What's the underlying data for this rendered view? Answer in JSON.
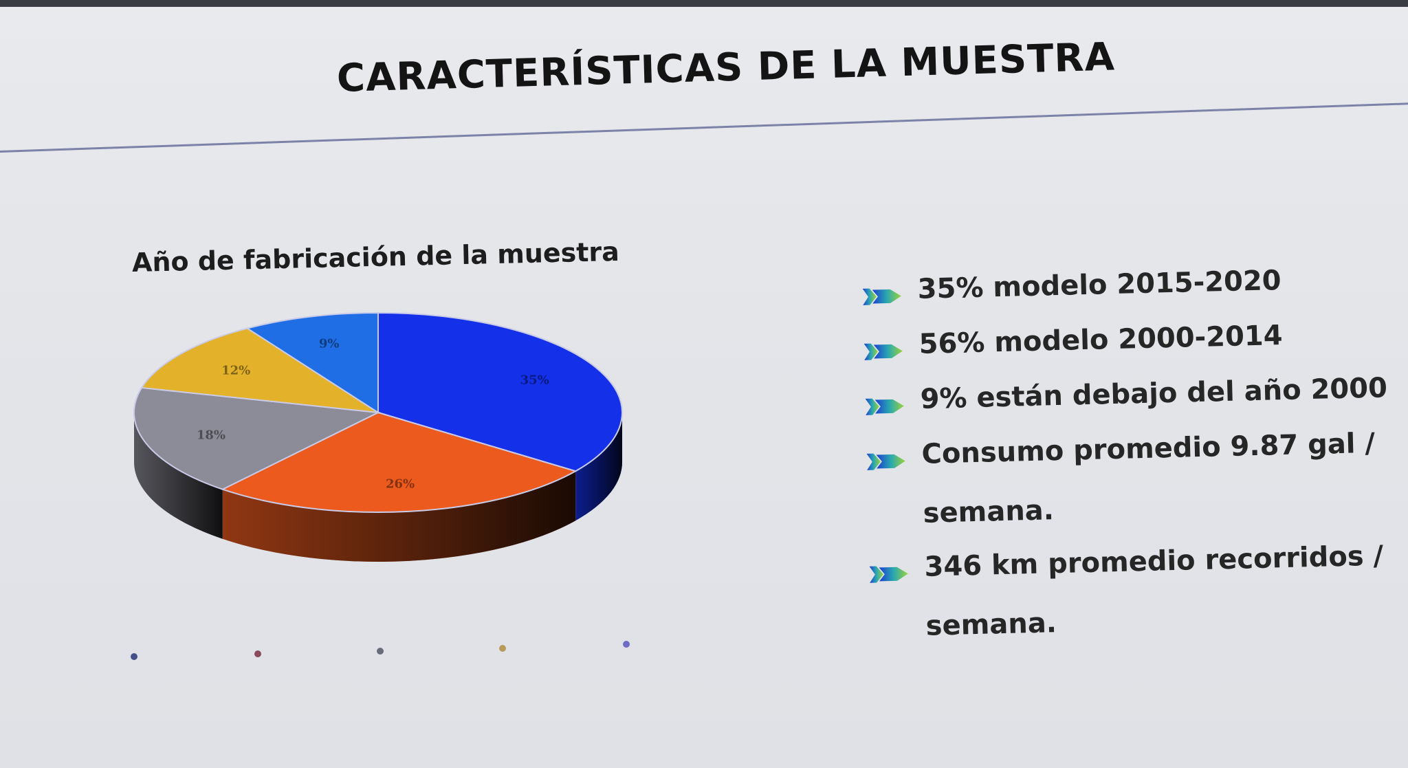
{
  "slide": {
    "title": "CARACTERÍSTICAS DE LA MUESTRA"
  },
  "chart_data": {
    "type": "pie",
    "title": "Año de fabricación de la muestra",
    "slices": [
      {
        "label": "35%",
        "value": 35,
        "color": "#1430e8"
      },
      {
        "label": "26%",
        "value": 26,
        "color": "#ec5a1e"
      },
      {
        "label": "18%",
        "value": 18,
        "color": "#8c8c98"
      },
      {
        "label": "12%",
        "value": 12,
        "color": "#e4b22a"
      },
      {
        "label": "9%",
        "value": 9,
        "color": "#1f6ee6"
      }
    ],
    "legend_colors": [
      "#44508a",
      "#8a4a5c",
      "#686c7a",
      "#b89a5a",
      "#6e6cc4"
    ],
    "three_d": true
  },
  "bullets": [
    {
      "text": "35% modelo 2015-2020"
    },
    {
      "text": "56% modelo 2000-2014"
    },
    {
      "text": "9% están debajo del año 2000"
    },
    {
      "text": "Consumo promedio 9.87 gal /",
      "continuation": "semana."
    },
    {
      "text": "346 km promedio recorridos /",
      "continuation": "semana."
    }
  ]
}
